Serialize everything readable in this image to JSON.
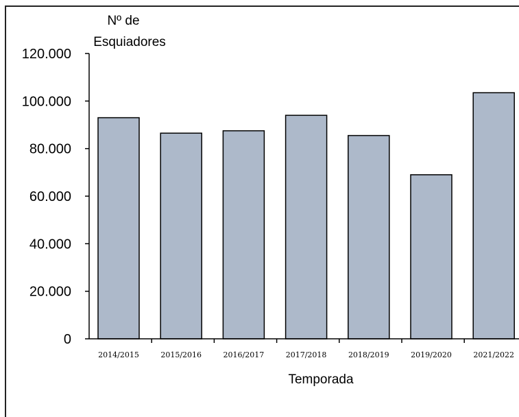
{
  "chart_data": {
    "type": "bar",
    "categories": [
      "2014/2015",
      "2015/2016",
      "2016/2017",
      "2017/2018",
      "2018/2019",
      "2019/2020",
      "2021/2022"
    ],
    "values": [
      93000,
      86500,
      87500,
      94000,
      85500,
      69000,
      103500
    ],
    "title": "",
    "xlabel": "Temporada",
    "ylabel_lines": [
      "Nº de",
      "Esquiadores"
    ],
    "ylim": [
      0,
      120000
    ],
    "yticks": [
      0,
      20000,
      40000,
      60000,
      80000,
      100000,
      120000
    ],
    "ytick_labels": [
      "0",
      "20.000",
      "40.000",
      "60.000",
      "80.000",
      "100.000",
      "120.000"
    ],
    "grid": false,
    "legend": "none",
    "bar_color": "#adb9ca",
    "bar_edge_color": "#000000"
  }
}
